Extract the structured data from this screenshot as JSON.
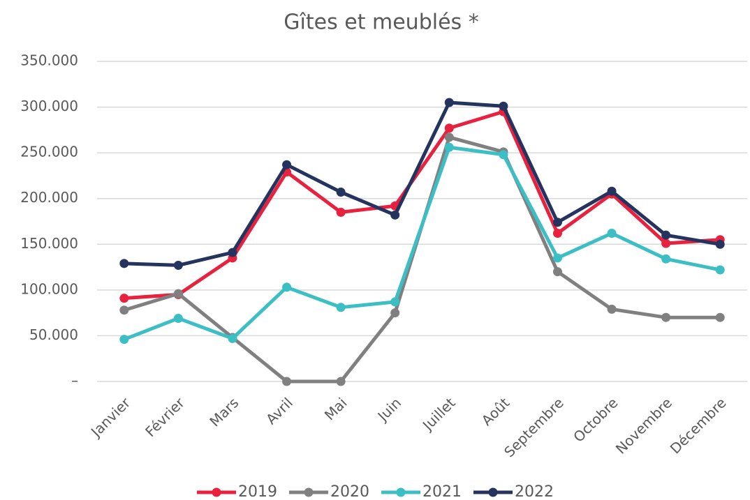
{
  "chart_data": {
    "type": "line",
    "title": "Gîtes et meublés *",
    "categories": [
      "Janvier",
      "Février",
      "Mars",
      "Avril",
      "Mai",
      "Juin",
      "Juillet",
      "Août",
      "Septembre",
      "Octobre",
      "Novembre",
      "Décembre"
    ],
    "series": [
      {
        "name": "2019",
        "color": "#e8213f",
        "values": [
          91000,
          95000,
          135000,
          229000,
          185000,
          192000,
          277000,
          295000,
          162000,
          205000,
          151000,
          155000
        ]
      },
      {
        "name": "2020",
        "color": "#808080",
        "values": [
          78000,
          96000,
          48000,
          0,
          0,
          75000,
          267000,
          251000,
          120000,
          79000,
          70000,
          70000
        ]
      },
      {
        "name": "2021",
        "color": "#3bbfc4",
        "values": [
          46000,
          69000,
          47000,
          103000,
          81000,
          87000,
          256000,
          248000,
          135000,
          162000,
          134000,
          122000
        ]
      },
      {
        "name": "2022",
        "color": "#24345e",
        "values": [
          129000,
          127000,
          141000,
          237000,
          207000,
          182000,
          305000,
          301000,
          174000,
          208000,
          160000,
          150000
        ]
      }
    ],
    "ylim": [
      0,
      350000
    ],
    "yticks": [
      {
        "value": 0,
        "label": "–"
      },
      {
        "value": 50000,
        "label": "50.000"
      },
      {
        "value": 100000,
        "label": "100.000"
      },
      {
        "value": 150000,
        "label": "150.000"
      },
      {
        "value": 200000,
        "label": "200.000"
      },
      {
        "value": 250000,
        "label": "250.000"
      },
      {
        "value": 300000,
        "label": "300.000"
      },
      {
        "value": 350000,
        "label": "350.000"
      }
    ],
    "grid": true,
    "legend": "bottom"
  }
}
